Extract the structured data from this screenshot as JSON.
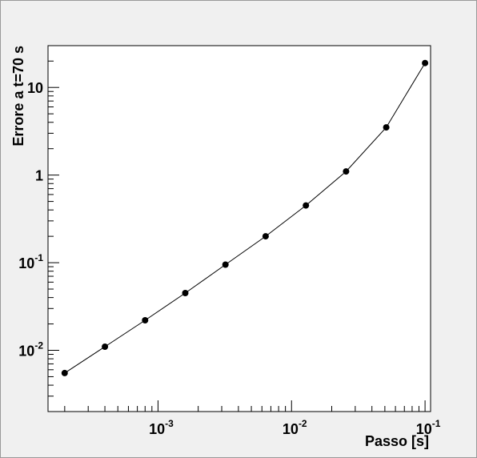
{
  "chart_data": {
    "type": "line",
    "title": "",
    "xlabel": "Passo [s]",
    "ylabel": "Errore a t=70 s",
    "x_scale": "log",
    "y_scale": "log",
    "xlim": [
      0.00015,
      0.11
    ],
    "ylim": [
      0.002,
      30
    ],
    "grid": false,
    "legend": "none",
    "colors": {
      "line": "#000000",
      "marker": "#000000",
      "background": "#f0f0f0",
      "plot_bg": "#ffffff"
    },
    "x_ticks": [
      {
        "value": 0.001,
        "base": "10",
        "exp": "-3"
      },
      {
        "value": 0.01,
        "base": "10",
        "exp": "-2"
      },
      {
        "value": 0.1,
        "base": "10",
        "exp": "-1"
      }
    ],
    "y_ticks": [
      {
        "value": 0.01,
        "base": "10",
        "exp": "-2"
      },
      {
        "value": 0.1,
        "base": "10",
        "exp": "-1"
      },
      {
        "value": 1,
        "base": "1",
        "exp": ""
      },
      {
        "value": 10,
        "base": "10",
        "exp": ""
      }
    ],
    "series": [
      {
        "x": [
          0.0002,
          0.0004,
          0.0008,
          0.0016,
          0.0032,
          0.0064,
          0.0128,
          0.0256,
          0.0512,
          0.1
        ],
        "y": [
          0.0055,
          0.011,
          0.022,
          0.045,
          0.095,
          0.2,
          0.45,
          1.1,
          3.5,
          19
        ]
      }
    ]
  }
}
